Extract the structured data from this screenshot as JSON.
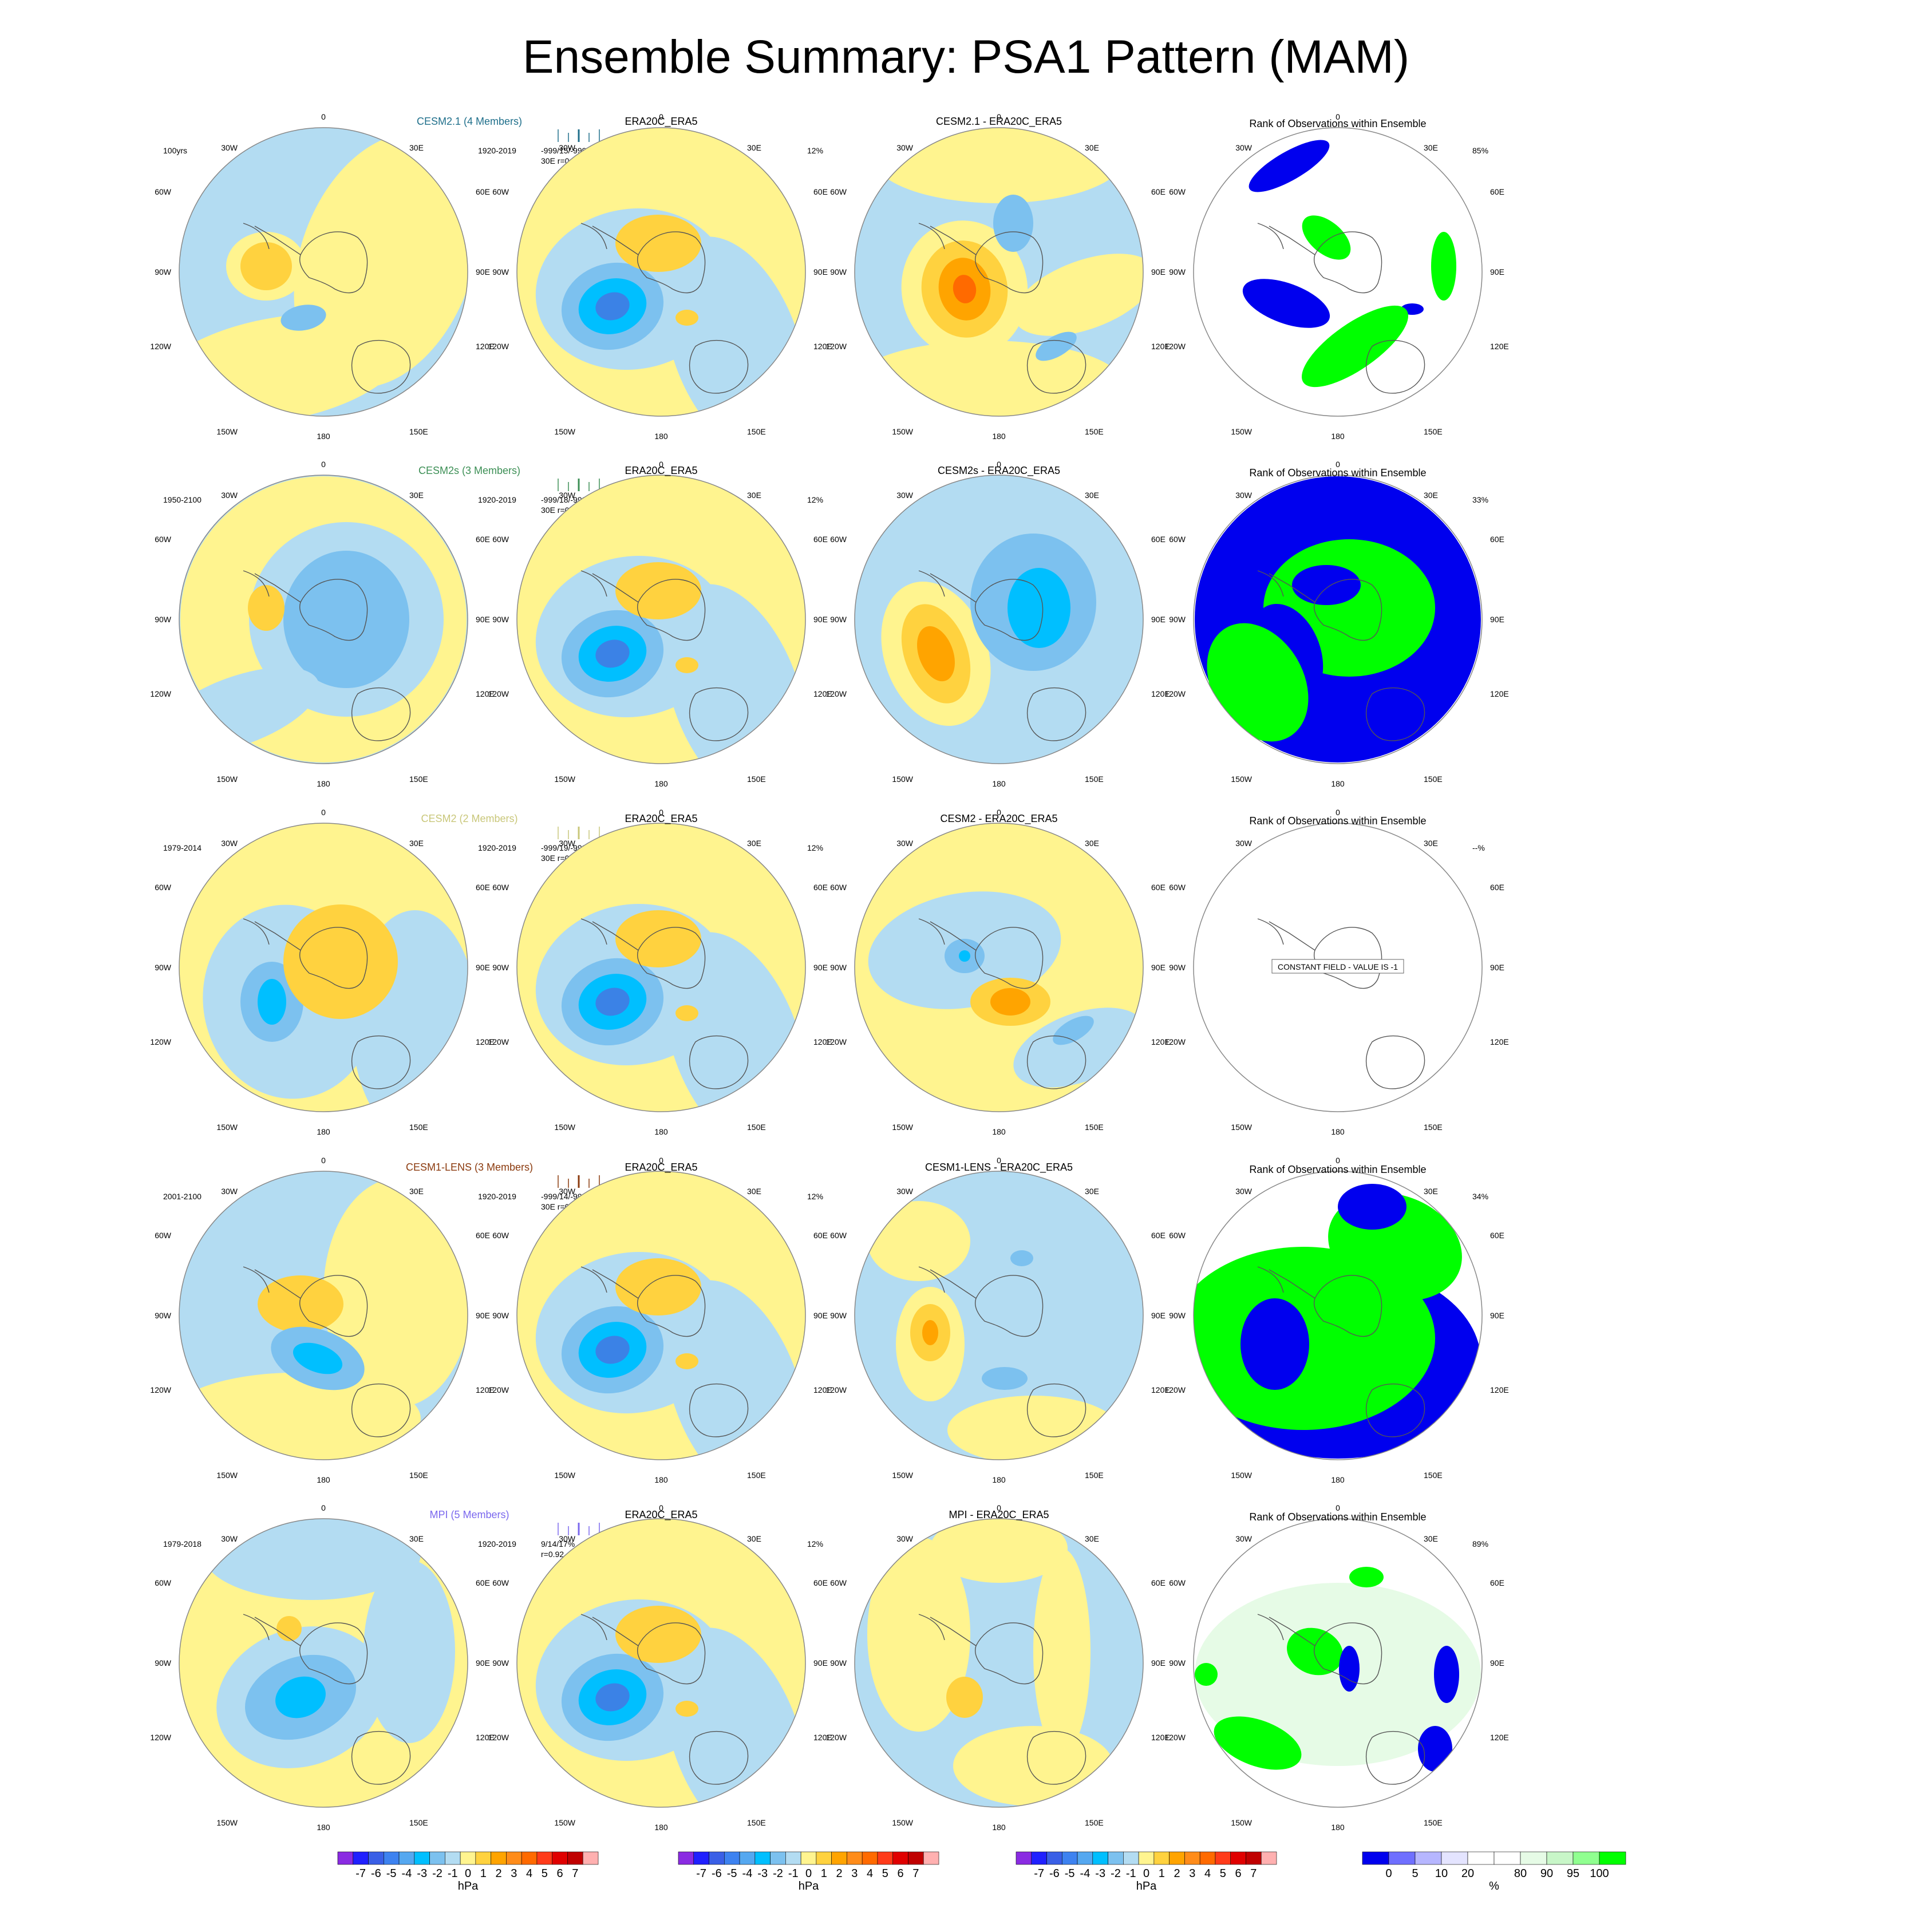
{
  "page_title": "Ensemble Summary: PSA1 Pattern (MAM)",
  "colors": {
    "ocean_neg1": "#b3dcf2",
    "neg2": "#7cc1ef",
    "neg3": "#00bfff",
    "neg4": "#3b82e6",
    "pos1": "#fff48f",
    "pos2": "#ffd23f",
    "pos3": "#ffa400",
    "pos4": "#ff6a00",
    "rank_low": "#0000ee",
    "rank_high": "#00ff00",
    "rank_pale": "#e6fbe6",
    "coast": "#555555",
    "rim": "#888888"
  },
  "lon_labels": {
    "top": "0",
    "n30w": "30W",
    "n30e": "30E",
    "w60": "60W",
    "e60": "60E",
    "w90": "90W",
    "e90": "90E",
    "w120": "120W",
    "e120": "120E",
    "s150w": "150W",
    "s150e": "150E",
    "bottom": "180"
  },
  "rows": [
    {
      "model_title": "CESM2.1 (4 Members)",
      "model_color": "#1f6f8b",
      "period": "100yrs",
      "stats1": "-999/15/-999%",
      "stats2": "30E r=0.30",
      "obs_pct": "12%",
      "diff_title": "CESM2.1 - ERA20C_ERA5",
      "rank_pct": "85%"
    },
    {
      "model_title": "CESM2s (3 Members)",
      "model_color": "#3c8f55",
      "period": "1950-2100",
      "stats1": "-999/18/-999%",
      "stats2": "30E r=0.01",
      "obs_pct": "12%",
      "diff_title": "CESM2s - ERA20C_ERA5",
      "rank_pct": "33%"
    },
    {
      "model_title": "CESM2 (2 Members)",
      "model_color": "#c9c77a",
      "period": "1979-2014",
      "stats1": "-999/19/-999%",
      "stats2": "30E r=0.60",
      "obs_pct": "12%",
      "diff_title": "CESM2 - ERA20C_ERA5",
      "rank_pct": "--%",
      "constant_label": "CONSTANT FIELD - VALUE IS -1"
    },
    {
      "model_title": "CESM1-LENS (3 Members)",
      "model_color": "#8b3a0e",
      "period": "2001-2100",
      "stats1": "-999/14/-999%",
      "stats2": "30E r=0.72",
      "obs_pct": "12%",
      "diff_title": "CESM1-LENS - ERA20C_ERA5",
      "rank_pct": "34%"
    },
    {
      "model_title": "MPI (5 Members)",
      "model_color": "#7b68ee",
      "period": "1979-2018",
      "stats1": "9/14/17%",
      "stats2": "r=0.92",
      "obs_pct": "12%",
      "diff_title": "MPI - ERA20C_ERA5",
      "rank_pct": "89%"
    }
  ],
  "obs_title": "ERA20C_ERA5",
  "obs_period": "1920-2019",
  "rank_title": "Rank of Observations within Ensemble",
  "colorbar_hpa": {
    "colors": [
      "#8a2be2",
      "#2020ff",
      "#3a5fe6",
      "#3d82f0",
      "#55a8f0",
      "#00bfff",
      "#7cc1ef",
      "#b3dcf2",
      "#fff48f",
      "#ffd23f",
      "#ffa400",
      "#ff8c1a",
      "#ff6a00",
      "#ff3b1a",
      "#e00000",
      "#c00000",
      "#ffb0b0"
    ],
    "labels": [
      "-7",
      "-6",
      "-5",
      "-4",
      "-3",
      "-2",
      "-1",
      "0",
      "1",
      "2",
      "3",
      "4",
      "5",
      "6",
      "7"
    ],
    "unit": "hPa"
  },
  "colorbar_rank": {
    "colors": [
      "#0000ee",
      "#6f6fff",
      "#b6b6ff",
      "#e4e4ff",
      "#ffffff",
      "#ffffff",
      "#e6fbe6",
      "#c8f6c8",
      "#90ff90",
      "#00ff00"
    ],
    "labels": [
      "0",
      "5",
      "10",
      "20",
      "80",
      "90",
      "95",
      "100"
    ],
    "unit": "%"
  },
  "chart_data": {
    "type": "heatmap",
    "title": "Ensemble Summary: PSA1 Pattern (MAM)",
    "layout": "5 rows x 4 polar-stereographic maps",
    "columns": [
      "model ensemble pattern",
      "ERA20C_ERA5",
      "model - ERA20C_ERA5",
      "Rank of Observations within Ensemble"
    ],
    "rows": [
      "CESM2.1 (4 Members)",
      "CESM2s (3 Members)",
      "CESM2 (2 Members)",
      "CESM1-LENS (3 Members)",
      "MPI (5 Members)"
    ],
    "pattern_correlation": [
      0.3,
      0.01,
      0.6,
      0.72,
      0.92
    ],
    "rank_percent": [
      85,
      33,
      null,
      34,
      89
    ],
    "contour_levels_hPa": [
      -7,
      -6,
      -5,
      -4,
      -3,
      -2,
      -1,
      0,
      1,
      2,
      3,
      4,
      5,
      6,
      7
    ],
    "rank_levels_percent": [
      0,
      5,
      10,
      20,
      80,
      90,
      95,
      100
    ]
  }
}
